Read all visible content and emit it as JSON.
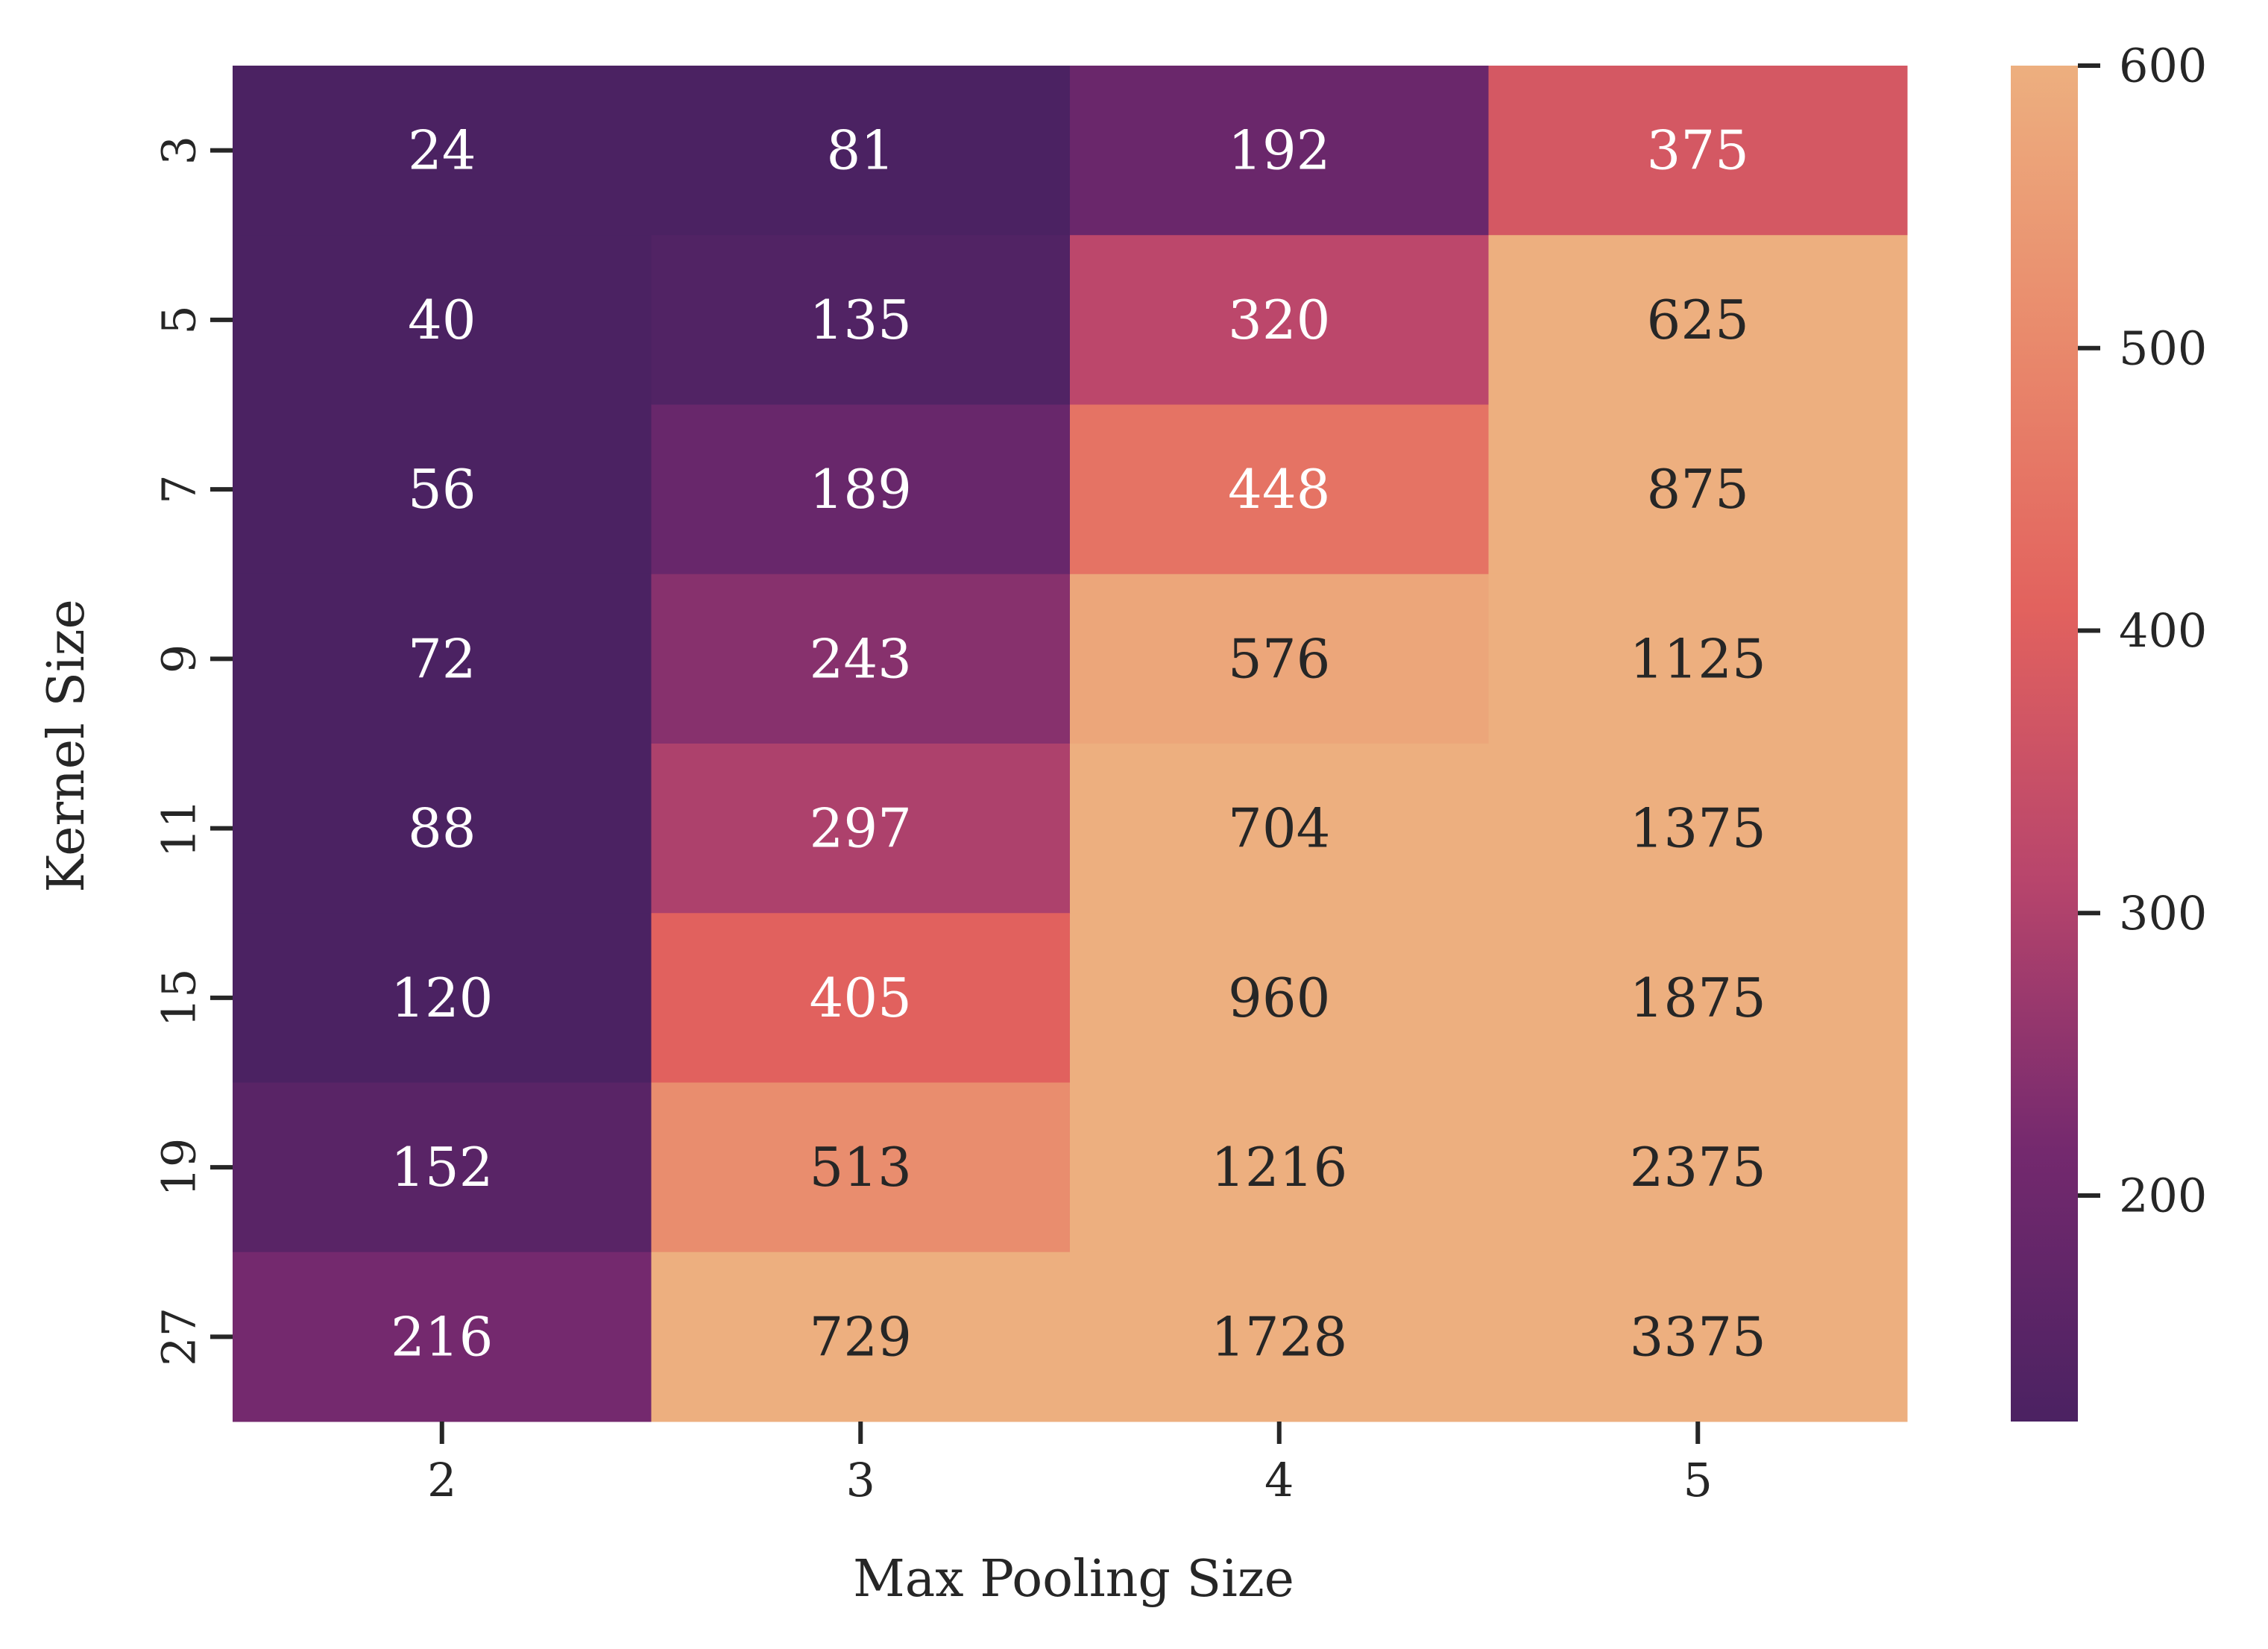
{
  "chart_data": {
    "type": "heatmap",
    "xlabel": "Max Pooling Size",
    "ylabel": "Kernel Size",
    "x_categories": [
      "2",
      "3",
      "4",
      "5"
    ],
    "y_categories": [
      "3",
      "5",
      "7",
      "9",
      "11",
      "15",
      "19",
      "27"
    ],
    "values": [
      [
        24,
        81,
        192,
        375
      ],
      [
        40,
        135,
        320,
        625
      ],
      [
        56,
        189,
        448,
        875
      ],
      [
        72,
        243,
        576,
        1125
      ],
      [
        88,
        297,
        704,
        1375
      ],
      [
        120,
        405,
        960,
        1875
      ],
      [
        152,
        513,
        1216,
        2375
      ],
      [
        216,
        729,
        1728,
        3375
      ]
    ],
    "colorbar": {
      "range": [
        120,
        600
      ],
      "ticks": [
        200,
        300,
        400,
        500,
        600
      ],
      "tick_labels": [
        "200",
        "300",
        "400",
        "500",
        "600"
      ],
      "colormap": "flare"
    },
    "grid": false,
    "legend": "colorbar-right"
  }
}
